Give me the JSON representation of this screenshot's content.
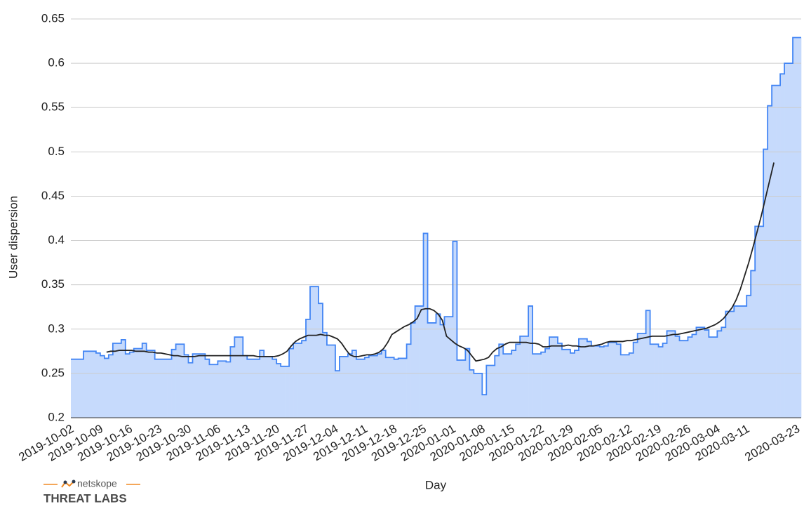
{
  "chart_data": {
    "type": "area",
    "y_label": "User dispersion",
    "x_label": "Day",
    "ylim": [
      0.2,
      0.65
    ],
    "yticks": [
      0.2,
      0.25,
      0.3,
      0.35,
      0.4,
      0.45,
      0.5,
      0.55,
      0.6,
      0.65
    ],
    "grid": true,
    "categories": [
      "2019-10-02",
      null,
      null,
      null,
      null,
      null,
      null,
      "2019-10-09",
      null,
      null,
      null,
      null,
      null,
      null,
      "2019-10-16",
      null,
      null,
      null,
      null,
      null,
      null,
      "2019-10-23",
      null,
      null,
      null,
      null,
      null,
      null,
      "2019-10-30",
      null,
      null,
      null,
      null,
      null,
      null,
      "2019-11-06",
      null,
      null,
      null,
      null,
      null,
      null,
      "2019-11-13",
      null,
      null,
      null,
      null,
      null,
      null,
      "2019-11-20",
      null,
      null,
      null,
      null,
      null,
      null,
      "2019-11-27",
      null,
      null,
      null,
      null,
      null,
      null,
      "2019-12-04",
      null,
      null,
      null,
      null,
      null,
      null,
      "2019-12-11",
      null,
      null,
      null,
      null,
      null,
      null,
      "2019-12-18",
      null,
      null,
      null,
      null,
      null,
      null,
      "2019-12-25",
      null,
      null,
      null,
      null,
      null,
      null,
      "2020-01-01",
      null,
      null,
      null,
      null,
      null,
      null,
      "2020-01-08",
      null,
      null,
      null,
      null,
      null,
      null,
      "2020-01-15",
      null,
      null,
      null,
      null,
      null,
      null,
      "2020-01-22",
      null,
      null,
      null,
      null,
      null,
      null,
      "2020-01-29",
      null,
      null,
      null,
      null,
      null,
      null,
      "2020-02-05",
      null,
      null,
      null,
      null,
      null,
      null,
      "2020-02-12",
      null,
      null,
      null,
      null,
      null,
      null,
      "2020-02-19",
      null,
      null,
      null,
      null,
      null,
      null,
      "2020-02-26",
      null,
      null,
      null,
      null,
      null,
      null,
      "2020-03-04",
      null,
      null,
      null,
      null,
      null,
      null,
      "2020-03-11",
      null,
      null,
      null,
      null,
      null,
      null,
      null,
      null,
      null,
      null,
      null,
      "2020-03-23"
    ],
    "series": [
      {
        "style": "step-area",
        "color": "#4285f4",
        "fill": "#c6dafc",
        "values": [
          0.266,
          0.266,
          0.266,
          0.275,
          0.275,
          0.275,
          0.273,
          0.27,
          0.267,
          0.271,
          0.284,
          0.284,
          0.288,
          0.272,
          0.274,
          0.278,
          0.278,
          0.284,
          0.276,
          0.276,
          0.266,
          0.266,
          0.266,
          0.266,
          0.277,
          0.283,
          0.283,
          0.271,
          0.262,
          0.272,
          0.272,
          0.272,
          0.266,
          0.26,
          0.26,
          0.264,
          0.264,
          0.263,
          0.28,
          0.291,
          0.291,
          0.27,
          0.266,
          0.266,
          0.266,
          0.276,
          0.269,
          0.269,
          0.266,
          0.261,
          0.258,
          0.258,
          0.278,
          0.284,
          0.284,
          0.287,
          0.311,
          0.348,
          0.348,
          0.329,
          0.296,
          0.282,
          0.282,
          0.253,
          0.269,
          0.269,
          0.272,
          0.276,
          0.266,
          0.266,
          0.268,
          0.27,
          0.27,
          0.272,
          0.276,
          0.268,
          0.268,
          0.266,
          0.267,
          0.267,
          0.283,
          0.307,
          0.326,
          0.326,
          0.408,
          0.307,
          0.307,
          0.317,
          0.305,
          0.314,
          0.314,
          0.399,
          0.265,
          0.265,
          0.278,
          0.254,
          0.25,
          0.25,
          0.226,
          0.259,
          0.259,
          0.27,
          0.283,
          0.272,
          0.272,
          0.276,
          0.283,
          0.292,
          0.292,
          0.326,
          0.272,
          0.272,
          0.274,
          0.278,
          0.291,
          0.291,
          0.284,
          0.277,
          0.277,
          0.273,
          0.276,
          0.289,
          0.289,
          0.286,
          0.281,
          0.281,
          0.28,
          0.281,
          0.285,
          0.285,
          0.283,
          0.271,
          0.271,
          0.273,
          0.285,
          0.295,
          0.295,
          0.321,
          0.283,
          0.283,
          0.28,
          0.284,
          0.298,
          0.298,
          0.292,
          0.287,
          0.287,
          0.291,
          0.294,
          0.302,
          0.302,
          0.299,
          0.291,
          0.291,
          0.298,
          0.302,
          0.32,
          0.32,
          0.326,
          0.326,
          0.326,
          0.338,
          0.366,
          0.416,
          0.416,
          0.503,
          0.552,
          0.575,
          0.575,
          0.588,
          0.6,
          0.6,
          0.629,
          0.629
        ]
      },
      {
        "style": "line",
        "color": "#222222",
        "values": [
          null,
          null,
          null,
          null,
          null,
          null,
          null,
          null,
          0.274,
          0.275,
          0.275,
          0.276,
          0.276,
          0.276,
          0.276,
          0.275,
          0.275,
          0.275,
          0.274,
          0.274,
          0.273,
          0.273,
          0.272,
          0.271,
          0.27,
          0.27,
          0.269,
          0.269,
          0.269,
          0.269,
          0.27,
          0.27,
          0.27,
          0.27,
          0.27,
          0.27,
          0.27,
          0.27,
          0.27,
          0.27,
          0.27,
          0.27,
          0.27,
          0.27,
          0.269,
          0.269,
          0.269,
          0.269,
          0.269,
          0.27,
          0.272,
          0.275,
          0.281,
          0.286,
          0.289,
          0.291,
          0.293,
          0.293,
          0.293,
          0.294,
          0.293,
          0.293,
          0.291,
          0.289,
          0.284,
          0.277,
          0.271,
          0.269,
          0.269,
          0.27,
          0.271,
          0.271,
          0.272,
          0.274,
          0.278,
          0.285,
          0.294,
          0.297,
          0.3,
          0.303,
          0.305,
          0.308,
          0.312,
          0.322,
          0.323,
          0.323,
          0.321,
          0.317,
          0.31,
          0.292,
          0.288,
          0.284,
          0.281,
          0.279,
          0.276,
          0.27,
          0.264,
          0.265,
          0.266,
          0.268,
          0.274,
          0.278,
          0.28,
          0.283,
          0.285,
          0.285,
          0.285,
          0.285,
          0.285,
          0.284,
          0.284,
          0.283,
          0.28,
          0.28,
          0.281,
          0.281,
          0.281,
          0.281,
          0.282,
          0.281,
          0.281,
          0.28,
          0.28,
          0.281,
          0.281,
          0.282,
          0.283,
          0.285,
          0.286,
          0.286,
          0.286,
          0.286,
          0.287,
          0.287,
          0.288,
          0.289,
          0.29,
          0.291,
          0.292,
          0.292,
          0.292,
          0.292,
          0.293,
          0.294,
          0.294,
          0.295,
          0.296,
          0.297,
          0.298,
          0.299,
          0.3,
          0.301,
          0.303,
          0.305,
          0.308,
          0.312,
          0.318,
          0.324,
          0.333,
          0.345,
          0.36,
          0.375,
          0.392,
          0.41,
          0.428,
          0.448,
          0.468,
          0.488,
          null,
          null,
          null,
          null,
          null,
          null
        ]
      }
    ]
  },
  "logo": {
    "brand": "netskope",
    "label": "THREAT LABS"
  }
}
